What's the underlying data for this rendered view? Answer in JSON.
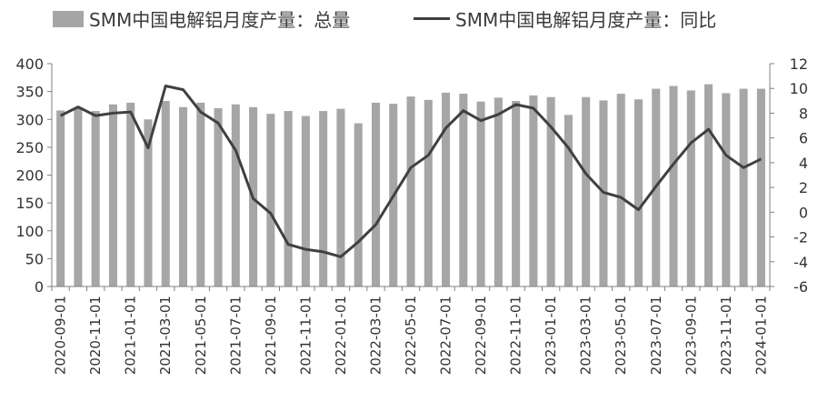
{
  "chart_data": {
    "type": "bar+line",
    "legend": {
      "bar_label": "SMM中国电解铝月度产量：总量",
      "line_label": "SMM中国电解铝月度产量：同比"
    },
    "colors": {
      "bar": "#a6a6a6",
      "line": "#404040",
      "axis": "#808080"
    },
    "x_tick_labels": [
      "2020-09-01",
      "2020-11-01",
      "2021-01-01",
      "2021-03-01",
      "2021-05-01",
      "2021-07-01",
      "2021-09-01",
      "2021-11-01",
      "2022-01-01",
      "2022-03-01",
      "2022-05-01",
      "2022-07-01",
      "2022-09-01",
      "2022-11-01",
      "2023-01-01",
      "2023-03-01",
      "2023-05-01",
      "2023-07-01",
      "2023-09-01",
      "2023-11-01",
      "2024-01-01"
    ],
    "x": [
      "2020-09",
      "2020-10",
      "2020-11",
      "2020-12",
      "2021-01",
      "2021-02",
      "2021-03",
      "2021-04",
      "2021-05",
      "2021-06",
      "2021-07",
      "2021-08",
      "2021-09",
      "2021-10",
      "2021-11",
      "2021-12",
      "2022-01",
      "2022-02",
      "2022-03",
      "2022-04",
      "2022-05",
      "2022-06",
      "2022-07",
      "2022-08",
      "2022-09",
      "2022-10",
      "2022-11",
      "2022-12",
      "2023-01",
      "2023-02",
      "2023-03",
      "2023-04",
      "2023-05",
      "2023-06",
      "2023-07",
      "2023-08",
      "2023-09",
      "2023-10",
      "2023-11",
      "2023-12",
      "2024-01"
    ],
    "y_left": {
      "ticks": [
        0,
        50,
        100,
        150,
        200,
        250,
        300,
        350,
        400
      ],
      "lim": [
        0,
        400
      ]
    },
    "y_right": {
      "ticks": [
        -6,
        -4,
        -2,
        0,
        2,
        4,
        6,
        8,
        10,
        12
      ],
      "lim": [
        -6,
        12
      ]
    },
    "series": [
      {
        "name": "SMM中国电解铝月度产量：总量",
        "type": "bar",
        "axis": "left",
        "values": [
          316,
          320,
          315,
          327,
          330,
          300,
          333,
          322,
          330,
          320,
          327,
          322,
          310,
          315,
          306,
          315,
          319,
          293,
          330,
          328,
          341,
          335,
          348,
          346,
          332,
          339,
          333,
          343,
          340,
          308,
          340,
          334,
          346,
          336,
          355,
          360,
          352,
          363,
          347,
          355,
          355
        ]
      },
      {
        "name": "SMM中国电解铝月度产量：同比",
        "type": "line",
        "axis": "right",
        "values": [
          7.8,
          8.5,
          7.8,
          8.0,
          8.1,
          5.2,
          10.2,
          9.9,
          8.1,
          7.2,
          5.0,
          1.1,
          -0.1,
          -2.6,
          -3.0,
          -3.2,
          -3.6,
          -2.4,
          -1.0,
          1.3,
          3.6,
          4.6,
          6.8,
          8.2,
          7.4,
          7.9,
          8.7,
          8.4,
          6.9,
          5.2,
          3.1,
          1.6,
          1.2,
          0.2,
          2.1,
          3.9,
          5.6,
          6.7,
          4.6,
          3.6,
          4.3
        ]
      }
    ]
  }
}
